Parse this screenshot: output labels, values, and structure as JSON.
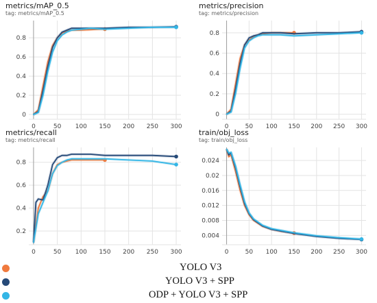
{
  "colors": {
    "yolov3": "#f07a3e",
    "yolov3_spp": "#264a78",
    "odp_yolov3_spp": "#34b6e6",
    "grid": "#e3e3e3",
    "axis": "#9e9e9e"
  },
  "panels": [
    {
      "title": "metrics/mAP_0.5",
      "tag": "tag: metrics/mAP_0.5"
    },
    {
      "title": "metrics/precision",
      "tag": "tag: metrics/precision"
    },
    {
      "title": "metrics/recall",
      "tag": "tag: metrics/recall"
    },
    {
      "title": "train/obj_loss",
      "tag": "tag: train/obj_loss"
    }
  ],
  "legend": [
    {
      "label": "YOLO V3",
      "color": "#f07a3e"
    },
    {
      "label": "YOLO V3 + SPP",
      "color": "#264a78"
    },
    {
      "label": "ODP + YOLO V3 + SPP",
      "color": "#34b6e6"
    }
  ],
  "chart_data": [
    {
      "type": "line",
      "title": "metrics/mAP_0.5",
      "subtitle": "tag: metrics/mAP_0.5",
      "xlim": [
        -10,
        310
      ],
      "ylim": [
        -0.05,
        0.98
      ],
      "xticks": [
        0,
        50,
        100,
        150,
        200,
        250,
        300
      ],
      "yticks": [
        0,
        0.2,
        0.4,
        0.6,
        0.8
      ],
      "ytick_labels": [
        "0",
        "0.2",
        "0.4",
        "0.6",
        "0.8"
      ],
      "grid": true,
      "series": [
        {
          "name": "YOLO V3",
          "x": [
            0,
            10,
            20,
            30,
            40,
            50,
            60,
            70,
            80,
            90,
            100,
            120,
            140,
            150
          ],
          "y": [
            0,
            0.05,
            0.3,
            0.55,
            0.72,
            0.8,
            0.85,
            0.87,
            0.88,
            0.88,
            0.88,
            0.885,
            0.89,
            0.89
          ]
        },
        {
          "name": "YOLO V3 + SPP",
          "x": [
            0,
            10,
            20,
            30,
            40,
            50,
            60,
            70,
            80,
            100,
            120,
            150,
            200,
            250,
            300
          ],
          "y": [
            0,
            0.03,
            0.25,
            0.5,
            0.7,
            0.8,
            0.86,
            0.88,
            0.9,
            0.9,
            0.9,
            0.9,
            0.91,
            0.91,
            0.915
          ]
        },
        {
          "name": "ODP + YOLO V3 + SPP",
          "x": [
            0,
            10,
            20,
            30,
            40,
            50,
            60,
            70,
            80,
            100,
            120,
            150,
            200,
            250,
            300
          ],
          "y": [
            0,
            0.02,
            0.2,
            0.45,
            0.65,
            0.77,
            0.83,
            0.86,
            0.88,
            0.89,
            0.9,
            0.89,
            0.9,
            0.91,
            0.91
          ]
        }
      ]
    },
    {
      "type": "line",
      "title": "metrics/precision",
      "subtitle": "tag: metrics/precision",
      "xlim": [
        -10,
        310
      ],
      "ylim": [
        -0.05,
        0.92
      ],
      "xticks": [
        0,
        50,
        100,
        150,
        200,
        250,
        300
      ],
      "yticks": [
        0,
        0.2,
        0.4,
        0.6,
        0.8
      ],
      "ytick_labels": [
        "0",
        "0.2",
        "0.4",
        "0.6",
        "0.8"
      ],
      "grid": true,
      "series": [
        {
          "name": "YOLO V3",
          "x": [
            0,
            10,
            20,
            30,
            40,
            50,
            60,
            70,
            80,
            100,
            120,
            150
          ],
          "y": [
            0,
            0.05,
            0.3,
            0.55,
            0.68,
            0.73,
            0.76,
            0.78,
            0.79,
            0.8,
            0.8,
            0.8
          ]
        },
        {
          "name": "YOLO V3 + SPP",
          "x": [
            0,
            10,
            20,
            30,
            40,
            50,
            60,
            70,
            80,
            100,
            120,
            150,
            200,
            250,
            300
          ],
          "y": [
            0,
            0.03,
            0.25,
            0.5,
            0.68,
            0.75,
            0.77,
            0.78,
            0.8,
            0.8,
            0.8,
            0.79,
            0.8,
            0.8,
            0.81
          ]
        },
        {
          "name": "ODP + YOLO V3 + SPP",
          "x": [
            0,
            10,
            20,
            30,
            40,
            50,
            60,
            70,
            80,
            100,
            120,
            150,
            200,
            250,
            300
          ],
          "y": [
            0,
            0.02,
            0.2,
            0.45,
            0.65,
            0.72,
            0.75,
            0.77,
            0.78,
            0.78,
            0.78,
            0.77,
            0.78,
            0.79,
            0.8
          ]
        }
      ]
    },
    {
      "type": "line",
      "title": "metrics/recall",
      "subtitle": "tag: metrics/recall",
      "xlim": [
        -10,
        310
      ],
      "ylim": [
        0.08,
        0.93
      ],
      "xticks": [
        0,
        50,
        100,
        150,
        200,
        250,
        300
      ],
      "yticks": [
        0.2,
        0.4,
        0.6,
        0.8
      ],
      "ytick_labels": [
        "0.2",
        "0.4",
        "0.6",
        "0.8"
      ],
      "grid": true,
      "series": [
        {
          "name": "YOLO V3",
          "x": [
            0,
            10,
            15,
            20,
            30,
            40,
            50,
            60,
            70,
            80,
            100,
            120,
            150
          ],
          "y": [
            0.1,
            0.4,
            0.45,
            0.5,
            0.55,
            0.7,
            0.78,
            0.8,
            0.81,
            0.82,
            0.82,
            0.82,
            0.82
          ]
        },
        {
          "name": "YOLO V3 + SPP",
          "x": [
            0,
            5,
            10,
            20,
            30,
            40,
            50,
            60,
            70,
            80,
            100,
            120,
            150,
            200,
            250,
            300
          ],
          "y": [
            0.1,
            0.45,
            0.48,
            0.47,
            0.6,
            0.78,
            0.84,
            0.86,
            0.86,
            0.87,
            0.87,
            0.87,
            0.86,
            0.86,
            0.86,
            0.85
          ]
        },
        {
          "name": "ODP + YOLO V3 + SPP",
          "x": [
            0,
            10,
            20,
            30,
            40,
            50,
            60,
            70,
            80,
            100,
            120,
            150,
            200,
            250,
            300
          ],
          "y": [
            0.1,
            0.35,
            0.45,
            0.55,
            0.7,
            0.77,
            0.8,
            0.82,
            0.83,
            0.83,
            0.83,
            0.83,
            0.82,
            0.81,
            0.78
          ]
        }
      ]
    },
    {
      "type": "line",
      "title": "train/obj_loss",
      "subtitle": "tag: train/obj_loss",
      "xlim": [
        -10,
        310
      ],
      "ylim": [
        0.0015,
        0.0275
      ],
      "xticks": [
        0,
        50,
        100,
        150,
        200,
        250,
        300
      ],
      "yticks": [
        0.004,
        0.008,
        0.012,
        0.016,
        0.02,
        0.024
      ],
      "ytick_labels": [
        "0.004",
        "0.008",
        "0.012",
        "0.016",
        "0.02",
        "0.024"
      ],
      "grid": true,
      "series": [
        {
          "name": "YOLO V3",
          "x": [
            0,
            5,
            10,
            20,
            30,
            40,
            50,
            60,
            80,
            100,
            120,
            150
          ],
          "y": [
            0.027,
            0.025,
            0.0255,
            0.021,
            0.016,
            0.012,
            0.0095,
            0.008,
            0.0064,
            0.0056,
            0.0051,
            0.0046
          ]
        },
        {
          "name": "YOLO V3 + SPP",
          "x": [
            0,
            5,
            10,
            20,
            30,
            40,
            50,
            60,
            80,
            100,
            150,
            200,
            250,
            300
          ],
          "y": [
            0.027,
            0.0255,
            0.026,
            0.022,
            0.017,
            0.0125,
            0.0098,
            0.0082,
            0.0065,
            0.0056,
            0.0045,
            0.0037,
            0.0032,
            0.0029
          ]
        },
        {
          "name": "ODP + YOLO V3 + SPP",
          "x": [
            0,
            5,
            10,
            20,
            30,
            40,
            50,
            60,
            80,
            100,
            150,
            200,
            250,
            300
          ],
          "y": [
            0.027,
            0.026,
            0.0262,
            0.0225,
            0.0175,
            0.013,
            0.01,
            0.0084,
            0.0067,
            0.0058,
            0.0047,
            0.0039,
            0.0034,
            0.003
          ]
        }
      ]
    }
  ]
}
